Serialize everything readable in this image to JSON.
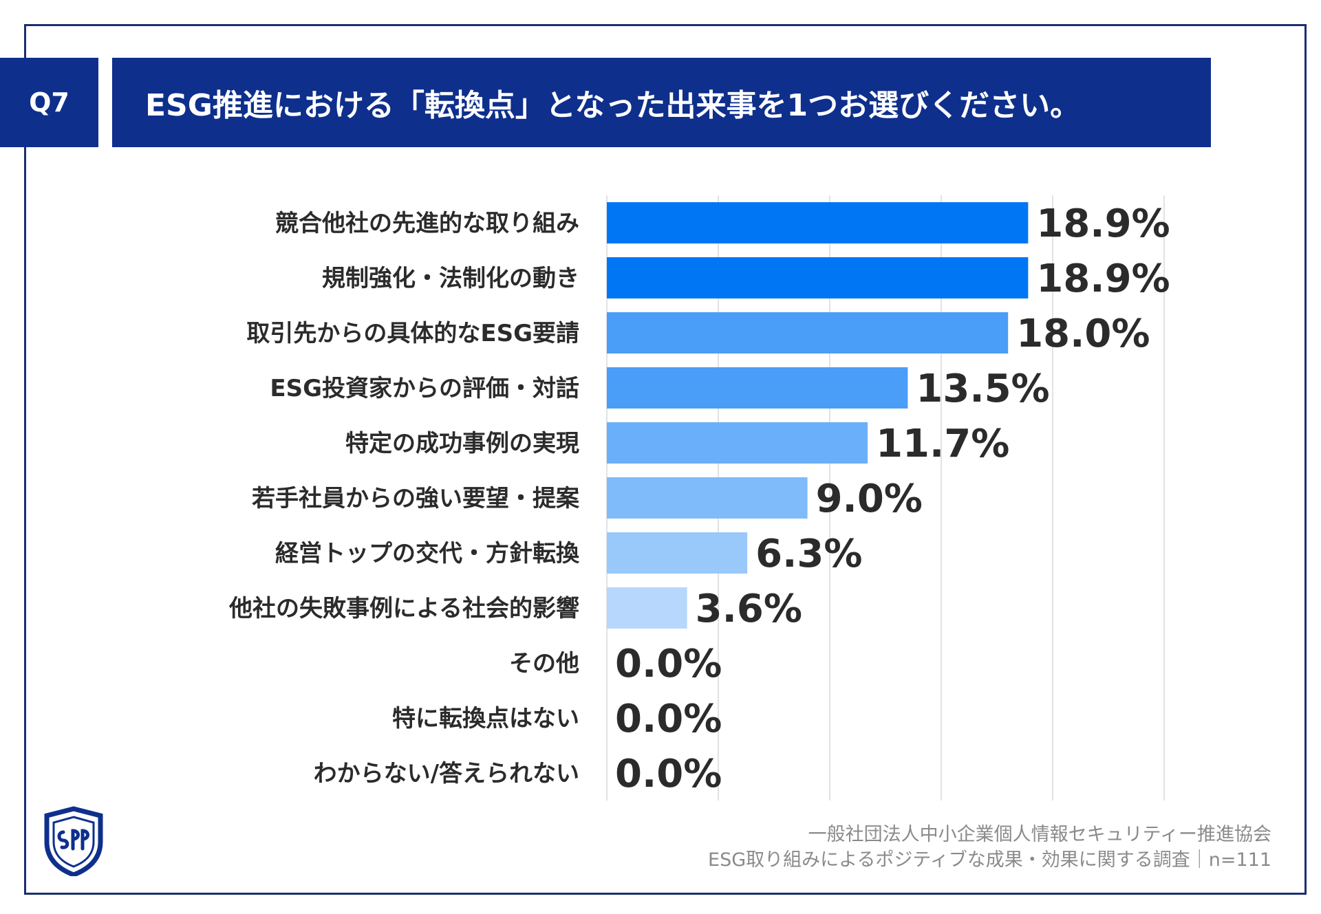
{
  "header": {
    "badge": "Q7",
    "title": "ESG推進における「転換点」となった出来事を1つお選びください。"
  },
  "chart_data": {
    "type": "bar",
    "orientation": "horizontal",
    "categories": [
      "競合他社の先進的な取り組み",
      "規制強化・法制化の動き",
      "取引先からの具体的なESG要請",
      "ESG投資家からの評価・対話",
      "特定の成功事例の実現",
      "若手社員からの強い要望・提案",
      "経営トップの交代・方針転換",
      "他社の失敗事例による社会的影響",
      "その他",
      "特に転換点はない",
      "わからない/答えられない"
    ],
    "values": [
      18.9,
      18.9,
      18.0,
      13.5,
      11.7,
      9.0,
      6.3,
      3.6,
      0.0,
      0.0,
      0.0
    ],
    "value_labels": [
      "18.9%",
      "18.9%",
      "18.0%",
      "13.5%",
      "11.7%",
      "9.0%",
      "6.3%",
      "3.6%",
      "0.0%",
      "0.0%",
      "0.0%"
    ],
    "bar_colors": [
      "#0076f5",
      "#0076f5",
      "#4a9ef7",
      "#4a9ef7",
      "#6aaff9",
      "#7fbafa",
      "#99c8fb",
      "#b7d8fc",
      "#b7d8fc",
      "#b7d8fc",
      "#b7d8fc"
    ],
    "xlim": [
      0,
      25
    ],
    "grid": true
  },
  "footer": {
    "line1": "一般社団法人中小企業個人情報セキュリティー推進協会",
    "line2": "ESG取り組みによるポジティブな成果・効果に関する調査｜n=111"
  },
  "logo": {
    "icon": "shield-logo",
    "color": "#0e2f8c"
  }
}
